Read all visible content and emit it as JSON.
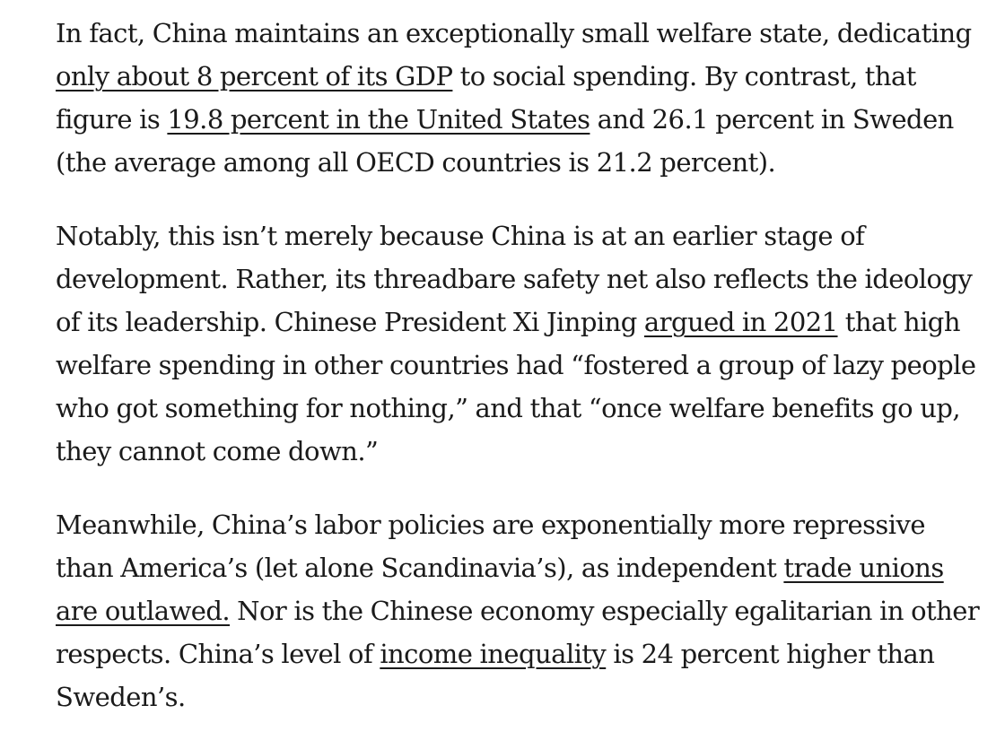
{
  "article": {
    "paragraphs": [
      {
        "t1": "In fact, China maintains an exceptionally small welfare state, dedicating ",
        "l1": "only about 8 percent of its GDP",
        "t2": " to social spending. By contrast, that figure is ",
        "l2": "19.8 percent in the United States",
        "t3": " and 26.1 percent in Sweden (the average among all OECD countries is 21.2 percent)."
      },
      {
        "t1": "Notably, this isn’t merely because China is at an earlier stage of development. Rather, its threadbare safety net also reflects the ideology of its leadership. Chinese President Xi Jinping ",
        "l1": "argued in 2021",
        "t2": " that high welfare spending in other countries had “fostered a group of lazy people who got something for nothing,” and that “once welfare benefits go up, they cannot come down.”"
      },
      {
        "t1": "Meanwhile, China’s labor policies are exponentially more repressive than America’s (let alone Scandinavia’s), as independent ",
        "l1": "trade unions are outlawed.",
        "t2": " Nor is the Chinese economy especially egalitarian in other respects. China’s level of ",
        "l2": "income inequality",
        "t3": " is 24 percent higher than Sweden’s."
      }
    ]
  }
}
